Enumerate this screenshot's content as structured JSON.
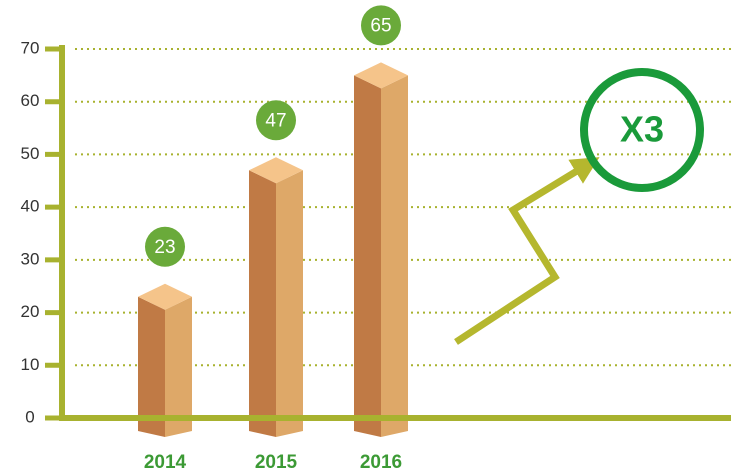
{
  "chart_data": {
    "type": "bar",
    "categories": [
      "2014",
      "2015",
      "2016"
    ],
    "values": [
      23,
      47,
      65
    ],
    "ylim": [
      0,
      70
    ],
    "yticks": [
      0,
      10,
      20,
      30,
      40,
      50,
      60,
      70
    ],
    "grid": true,
    "color": "#dea868",
    "annotation": "X3"
  }
}
